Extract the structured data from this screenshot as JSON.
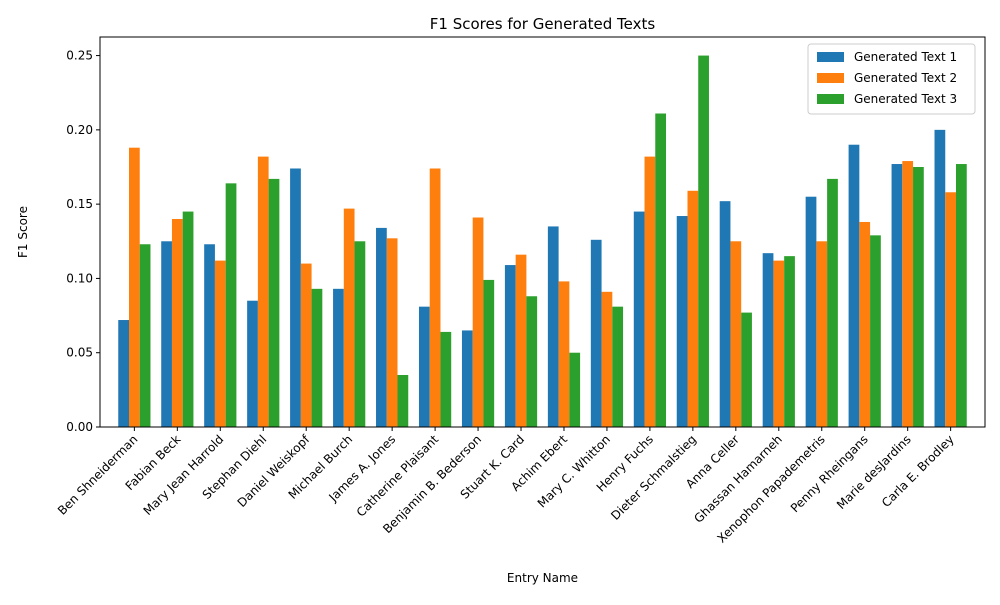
{
  "chart_data": {
    "type": "bar",
    "title": "F1 Scores for Generated Texts",
    "xlabel": "Entry Name",
    "ylabel": "F1 Score",
    "ylim": [
      0,
      0.2625
    ],
    "yticks": [
      "0.00",
      "0.05",
      "0.10",
      "0.15",
      "0.20",
      "0.25"
    ],
    "ytick_values": [
      0,
      0.05,
      0.1,
      0.15,
      0.2,
      0.25
    ],
    "grid": false,
    "legend_position": "top-right",
    "categories": [
      "Ben Shneiderman",
      "Fabian Beck",
      "Mary Jean Harrold",
      "Stephan Diehl",
      "Daniel Weiskopf",
      "Michael Burch",
      "James A. Jones",
      "Catherine Plaisant",
      "Benjamin B. Bederson",
      "Stuart K. Card",
      "Achim Ebert",
      "Mary C. Whitton",
      "Henry Fuchs",
      "Dieter Schmalstieg",
      "Anna Celler",
      "Ghassan Hamarneh",
      "Xenophon Papademetris",
      "Penny Rheingans",
      "Marie desJardins",
      "Carla E. Brodley"
    ],
    "series": [
      {
        "name": "Generated Text 1",
        "color": "#1f77b4",
        "values": [
          0.072,
          0.125,
          0.123,
          0.085,
          0.174,
          0.093,
          0.134,
          0.081,
          0.065,
          0.109,
          0.135,
          0.126,
          0.145,
          0.142,
          0.152,
          0.117,
          0.155,
          0.19,
          0.177,
          0.2
        ]
      },
      {
        "name": "Generated Text 2",
        "color": "#ff7f0e",
        "values": [
          0.188,
          0.14,
          0.112,
          0.182,
          0.11,
          0.147,
          0.127,
          0.174,
          0.141,
          0.116,
          0.098,
          0.091,
          0.182,
          0.159,
          0.125,
          0.112,
          0.125,
          0.138,
          0.179,
          0.158
        ]
      },
      {
        "name": "Generated Text 3",
        "color": "#2ca02c",
        "values": [
          0.123,
          0.145,
          0.164,
          0.167,
          0.093,
          0.125,
          0.035,
          0.064,
          0.099,
          0.088,
          0.05,
          0.081,
          0.211,
          0.25,
          0.077,
          0.115,
          0.167,
          0.129,
          0.175,
          0.177
        ]
      }
    ]
  }
}
